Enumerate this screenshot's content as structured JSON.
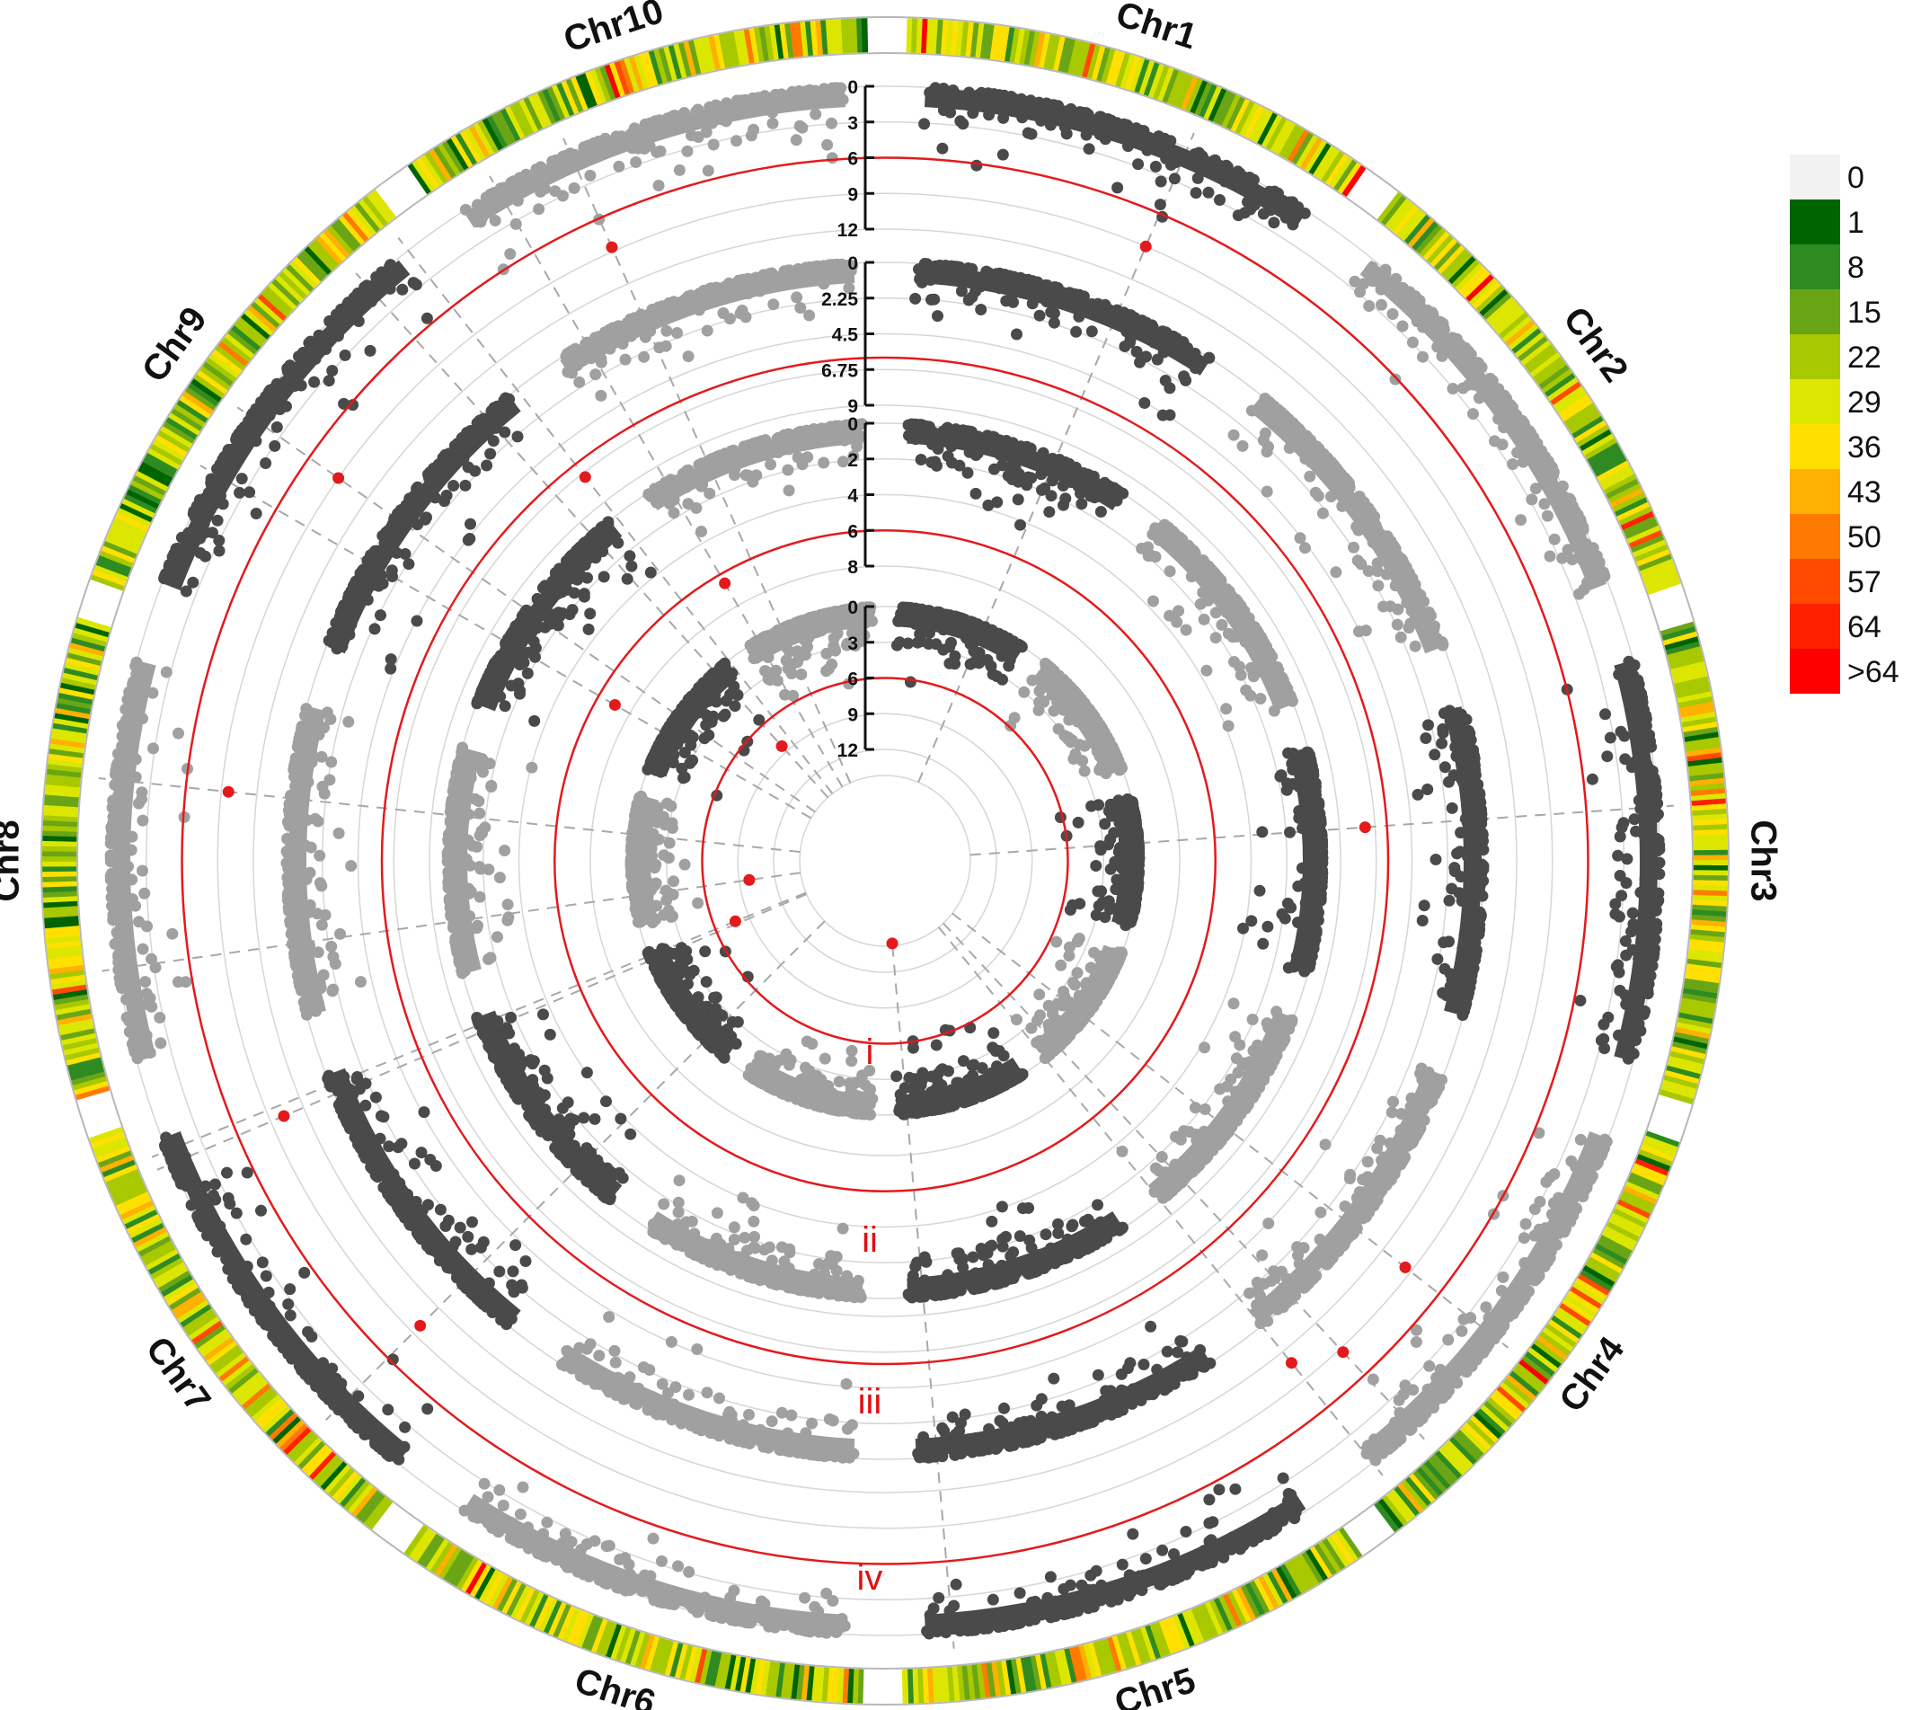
{
  "chart_data": {
    "type": "scatter",
    "title": "",
    "chromosomes": [
      "Chr1",
      "Chr2",
      "Chr3",
      "Chr4",
      "Chr5",
      "Chr6",
      "Chr7",
      "Chr8",
      "Chr9",
      "Chr10"
    ],
    "rings": [
      {
        "label": "iv",
        "ticks": [
          "0",
          "3",
          "6",
          "9",
          "12"
        ],
        "threshold": 6
      },
      {
        "label": "iii",
        "ticks": [
          "0",
          "2.25",
          "4.5",
          "6.75",
          "9"
        ],
        "threshold": 6
      },
      {
        "label": "ii",
        "ticks": [
          "0",
          "2",
          "4",
          "6",
          "8"
        ],
        "threshold": 6
      },
      {
        "label": "i",
        "ticks": [
          "0",
          "3",
          "6",
          "9",
          "12"
        ],
        "threshold": 6
      }
    ],
    "legend": {
      "placement": "right",
      "entries": [
        {
          "label": "0",
          "color": "#f2f2f2"
        },
        {
          "label": "1",
          "color": "#006400"
        },
        {
          "label": "8",
          "color": "#2e8b22"
        },
        {
          "label": "15",
          "color": "#6aa515"
        },
        {
          "label": "22",
          "color": "#a8c800"
        },
        {
          "label": "29",
          "color": "#dde600"
        },
        {
          "label": "36",
          "color": "#ffe000"
        },
        {
          "label": "43",
          "color": "#ffb000"
        },
        {
          "label": "50",
          "color": "#ff7a00"
        },
        {
          "label": "57",
          "color": "#ff4a00"
        },
        {
          "label": "64",
          "color": "#ff2000"
        },
        {
          "label": ">64",
          "color": "#ff0000"
        }
      ]
    },
    "colors": {
      "dark": "#4a4a4a",
      "light": "#a0a0a0",
      "threshold": "#e31a1c",
      "grid": "#d6d6d6",
      "highlight": "#e31a1c"
    }
  }
}
